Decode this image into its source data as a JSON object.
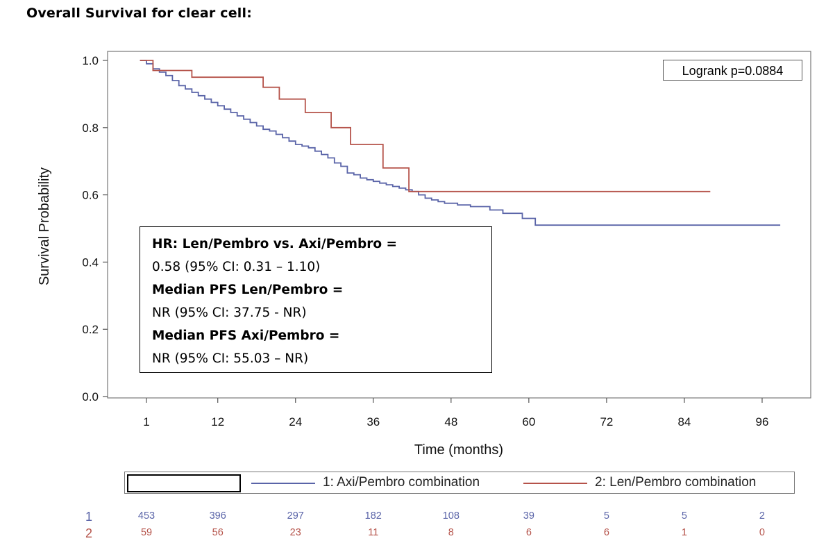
{
  "title": "Overall Survival for clear cell:",
  "colors": {
    "series1": "#5a64a8",
    "series2": "#b5534a"
  },
  "logrank_text": "Logrank p=0.0884",
  "annotation": {
    "line1": "HR: Len/Pembro vs. Axi/Pembro =",
    "line2": "0.58 (95% CI: 0.31 – 1.10)",
    "line3": "Median PFS Len/Pembro =",
    "line4": "NR (95% CI: 37.75 - NR)",
    "line5": "Median PFS Axi/Pembro =",
    "line6": "NR (95% CI: 55.03 – NR)"
  },
  "legend": {
    "series1_label": "1: Axi/Pembro combination",
    "series2_label": "2: Len/Pembro combination"
  },
  "risk_table": {
    "row1_label": "1",
    "row2_label": "2",
    "row1": [
      "453",
      "396",
      "297",
      "182",
      "108",
      "39",
      "5",
      "5",
      "2"
    ],
    "row2": [
      "59",
      "56",
      "23",
      "11",
      "8",
      "6",
      "6",
      "1",
      "0"
    ]
  },
  "chart_data": {
    "type": "line",
    "xlabel": "Time (months)",
    "ylabel": "Survival Probability",
    "x_ticks": [
      1,
      12,
      24,
      36,
      48,
      60,
      72,
      84,
      96
    ],
    "y_ticks": [
      0.0,
      0.2,
      0.4,
      0.6,
      0.8,
      1.0
    ],
    "y_tick_labels": [
      "0.0",
      "0.2",
      "0.4",
      "0.6",
      "0.8",
      "1.0"
    ],
    "xlim": [
      -5,
      103.5
    ],
    "ylim": [
      0,
      1.0
    ],
    "series": [
      {
        "name": "1: Axi/Pembro combination",
        "step": true,
        "points": [
          [
            0,
            1.0
          ],
          [
            1,
            0.99
          ],
          [
            2,
            0.975
          ],
          [
            3,
            0.965
          ],
          [
            4,
            0.955
          ],
          [
            5,
            0.94
          ],
          [
            6,
            0.925
          ],
          [
            7,
            0.915
          ],
          [
            8,
            0.905
          ],
          [
            9,
            0.895
          ],
          [
            10,
            0.885
          ],
          [
            11,
            0.875
          ],
          [
            12,
            0.865
          ],
          [
            13,
            0.855
          ],
          [
            14,
            0.845
          ],
          [
            15,
            0.835
          ],
          [
            16,
            0.825
          ],
          [
            17,
            0.815
          ],
          [
            18,
            0.805
          ],
          [
            19,
            0.795
          ],
          [
            20,
            0.79
          ],
          [
            21,
            0.78
          ],
          [
            22,
            0.77
          ],
          [
            23,
            0.76
          ],
          [
            24,
            0.75
          ],
          [
            25,
            0.745
          ],
          [
            26,
            0.74
          ],
          [
            27,
            0.73
          ],
          [
            28,
            0.72
          ],
          [
            29,
            0.71
          ],
          [
            30,
            0.695
          ],
          [
            31,
            0.685
          ],
          [
            32,
            0.665
          ],
          [
            33,
            0.66
          ],
          [
            34,
            0.65
          ],
          [
            35,
            0.645
          ],
          [
            36,
            0.64
          ],
          [
            37,
            0.635
          ],
          [
            38,
            0.63
          ],
          [
            39,
            0.625
          ],
          [
            40,
            0.62
          ],
          [
            41,
            0.615
          ],
          [
            42,
            0.61
          ],
          [
            43,
            0.6
          ],
          [
            44,
            0.59
          ],
          [
            45,
            0.585
          ],
          [
            46,
            0.58
          ],
          [
            47,
            0.575
          ],
          [
            48,
            0.575
          ],
          [
            49,
            0.57
          ],
          [
            50,
            0.57
          ],
          [
            51,
            0.565
          ],
          [
            54,
            0.555
          ],
          [
            56,
            0.545
          ],
          [
            59,
            0.53
          ],
          [
            61,
            0.51
          ],
          [
            98.8,
            0.51
          ]
        ]
      },
      {
        "name": "2: Len/Pembro combination",
        "step": true,
        "points": [
          [
            0,
            1.0
          ],
          [
            2,
            0.97
          ],
          [
            8,
            0.95
          ],
          [
            19,
            0.92
          ],
          [
            21.5,
            0.885
          ],
          [
            25.5,
            0.845
          ],
          [
            29.5,
            0.8
          ],
          [
            32.5,
            0.75
          ],
          [
            37.5,
            0.68
          ],
          [
            41.5,
            0.61
          ],
          [
            88,
            0.61
          ]
        ]
      }
    ]
  }
}
